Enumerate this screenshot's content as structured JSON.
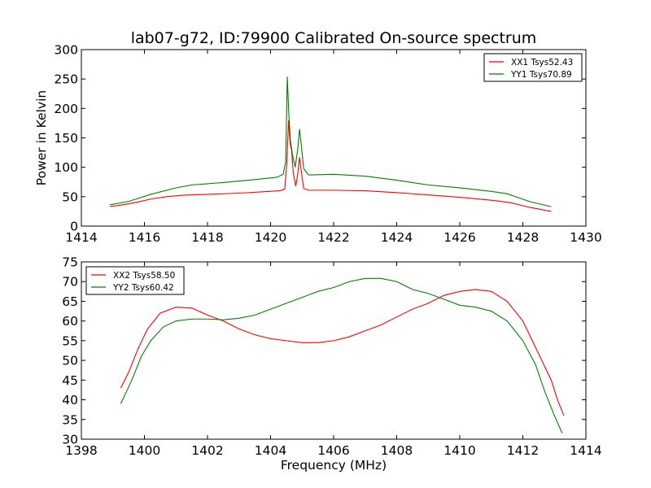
{
  "figure": {
    "title": "lab07-g72, ID:79900 Calibrated On-source spectrum"
  },
  "chart_data": [
    {
      "type": "line",
      "ylabel": "Power in Kelvin",
      "xlabel": "",
      "xlim": [
        1414,
        1430
      ],
      "ylim": [
        0,
        300
      ],
      "xticks": [
        1414,
        1416,
        1418,
        1420,
        1422,
        1424,
        1426,
        1428,
        1430
      ],
      "yticks": [
        0,
        50,
        100,
        150,
        200,
        250,
        300
      ],
      "grid": false,
      "legend": "top-right",
      "series": [
        {
          "name": "XX1 Tsys52.43",
          "color": "#ff0000",
          "points": [
            [
              1414.9,
              33
            ],
            [
              1415.3,
              36
            ],
            [
              1415.8,
              41
            ],
            [
              1416.2,
              46
            ],
            [
              1416.7,
              50
            ],
            [
              1417.2,
              52.5
            ],
            [
              1418,
              54
            ],
            [
              1419,
              56
            ],
            [
              1419.8,
              58.5
            ],
            [
              1420.3,
              60
            ],
            [
              1420.45,
              63
            ],
            [
              1420.52,
              110
            ],
            [
              1420.57,
              180
            ],
            [
              1420.62,
              140
            ],
            [
              1420.67,
              128
            ],
            [
              1420.72,
              90
            ],
            [
              1420.8,
              68
            ],
            [
              1420.86,
              88
            ],
            [
              1420.92,
              117
            ],
            [
              1420.97,
              95
            ],
            [
              1421.05,
              64
            ],
            [
              1421.2,
              61
            ],
            [
              1422,
              61
            ],
            [
              1423,
              60
            ],
            [
              1424,
              57
            ],
            [
              1425,
              53
            ],
            [
              1426,
              49
            ],
            [
              1427,
              44
            ],
            [
              1427.6,
              40
            ],
            [
              1428.2,
              32
            ],
            [
              1428.9,
              25
            ]
          ]
        },
        {
          "name": "YY1 Tsys70.89",
          "color": "#008000",
          "points": [
            [
              1414.9,
              36
            ],
            [
              1415.5,
              42
            ],
            [
              1416.2,
              54
            ],
            [
              1417,
              65
            ],
            [
              1417.5,
              70
            ],
            [
              1418.5,
              74
            ],
            [
              1419.5,
              79
            ],
            [
              1420.2,
              83
            ],
            [
              1420.4,
              88
            ],
            [
              1420.48,
              110
            ],
            [
              1420.53,
              254
            ],
            [
              1420.58,
              190
            ],
            [
              1420.63,
              145
            ],
            [
              1420.7,
              120
            ],
            [
              1420.78,
              100
            ],
            [
              1420.86,
              130
            ],
            [
              1420.92,
              165
            ],
            [
              1420.97,
              140
            ],
            [
              1421.05,
              98
            ],
            [
              1421.2,
              87
            ],
            [
              1422,
              88
            ],
            [
              1423,
              85
            ],
            [
              1424,
              78
            ],
            [
              1425,
              70
            ],
            [
              1426,
              65
            ],
            [
              1427,
              59
            ],
            [
              1427.5,
              55
            ],
            [
              1428.2,
              42
            ],
            [
              1428.9,
              33
            ]
          ]
        }
      ]
    },
    {
      "type": "line",
      "ylabel": "",
      "xlabel": "Frequency (MHz)",
      "xlim": [
        1398,
        1414
      ],
      "ylim": [
        30,
        75
      ],
      "xticks": [
        1398,
        1400,
        1402,
        1404,
        1406,
        1408,
        1410,
        1412,
        1414
      ],
      "yticks": [
        30,
        35,
        40,
        45,
        50,
        55,
        60,
        65,
        70,
        75
      ],
      "grid": false,
      "legend": "top-left",
      "series": [
        {
          "name": "XX2 Tsys58.50",
          "color": "#ff0000",
          "points": [
            [
              1399.25,
              43
            ],
            [
              1399.5,
              47
            ],
            [
              1399.8,
              53
            ],
            [
              1400.1,
              58
            ],
            [
              1400.5,
              62
            ],
            [
              1401,
              63.5
            ],
            [
              1401.5,
              63.3
            ],
            [
              1402,
              61.5
            ],
            [
              1402.5,
              60
            ],
            [
              1403,
              58
            ],
            [
              1403.5,
              56.5
            ],
            [
              1404,
              55.5
            ],
            [
              1404.5,
              55
            ],
            [
              1405,
              54.5
            ],
            [
              1405.5,
              54.5
            ],
            [
              1406,
              55
            ],
            [
              1406.5,
              56
            ],
            [
              1407,
              57.5
            ],
            [
              1407.5,
              59
            ],
            [
              1408,
              61
            ],
            [
              1408.5,
              63
            ],
            [
              1409,
              64.5
            ],
            [
              1409.5,
              66.5
            ],
            [
              1410,
              67.5
            ],
            [
              1410.5,
              68
            ],
            [
              1411,
              67.5
            ],
            [
              1411.5,
              65
            ],
            [
              1412,
              60
            ],
            [
              1412.3,
              55
            ],
            [
              1412.6,
              50
            ],
            [
              1412.9,
              45
            ],
            [
              1413.1,
              40
            ],
            [
              1413.3,
              36
            ]
          ]
        },
        {
          "name": "YY2 Tsys60.42",
          "color": "#008000",
          "points": [
            [
              1399.25,
              39
            ],
            [
              1399.6,
              45
            ],
            [
              1399.9,
              51
            ],
            [
              1400.2,
              55
            ],
            [
              1400.6,
              58.5
            ],
            [
              1401,
              60
            ],
            [
              1401.5,
              60.5
            ],
            [
              1402,
              60.5
            ],
            [
              1402.5,
              60.3
            ],
            [
              1403,
              60.7
            ],
            [
              1403.5,
              61.5
            ],
            [
              1404,
              63
            ],
            [
              1404.5,
              64.5
            ],
            [
              1405,
              66
            ],
            [
              1405.5,
              67.5
            ],
            [
              1406,
              68.5
            ],
            [
              1406.5,
              70
            ],
            [
              1407,
              70.8
            ],
            [
              1407.5,
              70.8
            ],
            [
              1408,
              70
            ],
            [
              1408.5,
              68
            ],
            [
              1409,
              67
            ],
            [
              1409.5,
              65.5
            ],
            [
              1410,
              64
            ],
            [
              1410.5,
              63.5
            ],
            [
              1411,
              62.5
            ],
            [
              1411.5,
              60
            ],
            [
              1412,
              55
            ],
            [
              1412.4,
              49
            ],
            [
              1412.7,
              42
            ],
            [
              1413,
              36
            ],
            [
              1413.25,
              31.5
            ]
          ]
        }
      ]
    }
  ]
}
